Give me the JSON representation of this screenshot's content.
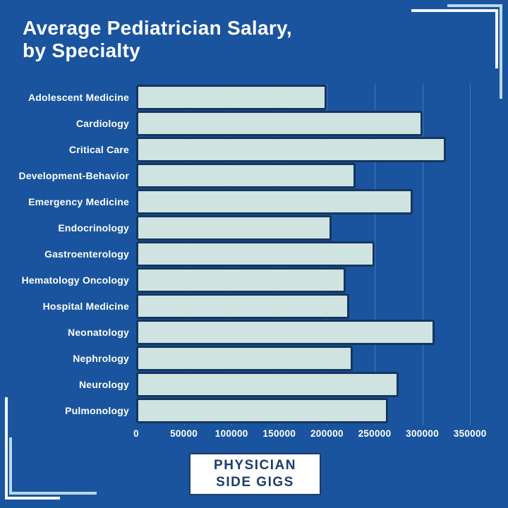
{
  "page": {
    "background_color": "#1a549e",
    "accent_navy": "#14365f",
    "bar_fill_color": "#cfe3e1",
    "corner_line_white": "#f4f9fc",
    "corner_line_pale_blue": "#b9d8ea",
    "text_color": "#ffffff"
  },
  "title": {
    "line1": "Average Pediatrician Salary,",
    "line2": "by Specialty"
  },
  "chart_data": {
    "type": "bar",
    "orientation": "horizontal",
    "title": "Average Pediatrician Salary, by Specialty",
    "xlabel": "",
    "ylabel": "",
    "xlim": [
      0,
      350000
    ],
    "x_ticks": [
      0,
      50000,
      100000,
      150000,
      200000,
      250000,
      300000,
      350000
    ],
    "grid": true,
    "legend": false,
    "bar_color": "#cfe3e1",
    "bar_border_color": "#14365f",
    "categories": [
      "Adolescent Medicine",
      "Cardiology",
      "Critical Care",
      "Development-Behavior",
      "Emergency Medicine",
      "Endocrinology",
      "Gastroenterology",
      "Hematology Oncology",
      "Hospital Medicine",
      "Neonatology",
      "Nephrology",
      "Neurology",
      "Pulmonology"
    ],
    "values": [
      200000,
      300000,
      325000,
      230000,
      290000,
      205000,
      250000,
      220000,
      223000,
      313000,
      227000,
      275000,
      264000
    ]
  },
  "footer_badge": {
    "line1": "PHYSICIAN",
    "line2": "SIDE GIGS"
  }
}
